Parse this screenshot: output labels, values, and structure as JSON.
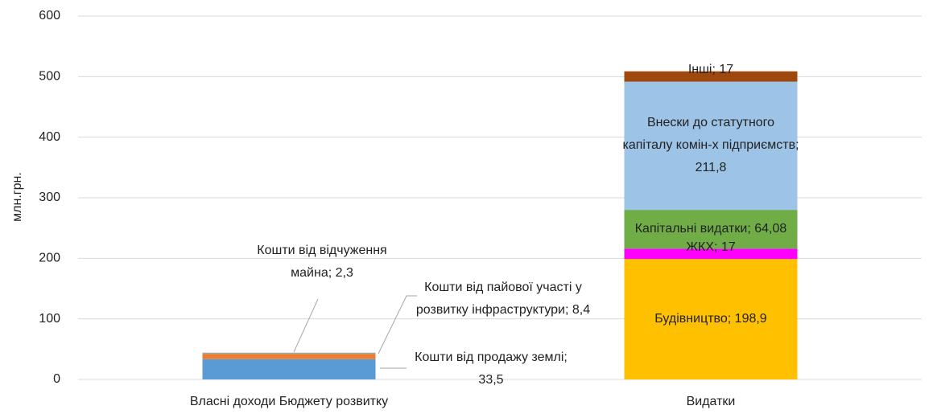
{
  "chart_data": {
    "type": "stacked_bar",
    "y_label": "млн.грн.",
    "categories": [
      "Власні доходи Бюджету розвитку",
      "Видатки"
    ],
    "ylim": [
      0,
      600
    ],
    "yticks": [
      0,
      100,
      200,
      300,
      400,
      500,
      600
    ],
    "grid": true,
    "series": [
      {
        "color": "#5b9bd5",
        "values": [
          33.5,
          null
        ],
        "value_labels": [
          "Кошти від продажу землі; 33,5",
          null
        ]
      },
      {
        "color": "#ed7d31",
        "values": [
          8.4,
          null
        ],
        "value_labels": [
          "Кошти від пайової участі у розвитку інфраструктури; 8,4",
          null
        ]
      },
      {
        "color": "#a5a5a5",
        "values": [
          2.3,
          null
        ],
        "value_labels": [
          "Кошти від відчуження майна; 2,3",
          null
        ]
      },
      {
        "color": "#ffc000",
        "values": [
          null,
          198.9
        ],
        "value_labels": [
          null,
          "Будівництво; 198,9"
        ]
      },
      {
        "color": "#ff00ff",
        "values": [
          null,
          17
        ],
        "value_labels": [
          null,
          "ЖКХ; 17"
        ]
      },
      {
        "color": "#70ad47",
        "values": [
          null,
          64.08
        ],
        "value_labels": [
          null,
          "Капітальні видатки; 64,08"
        ]
      },
      {
        "color": "#9dc3e6",
        "values": [
          null,
          211.8
        ],
        "value_labels": [
          null,
          "Внески до статутного капіталу комін-х підприємств; 211,8"
        ]
      },
      {
        "color": "#9e480e",
        "values": [
          null,
          17
        ],
        "value_labels": [
          null,
          "Інші; 17"
        ]
      }
    ]
  }
}
